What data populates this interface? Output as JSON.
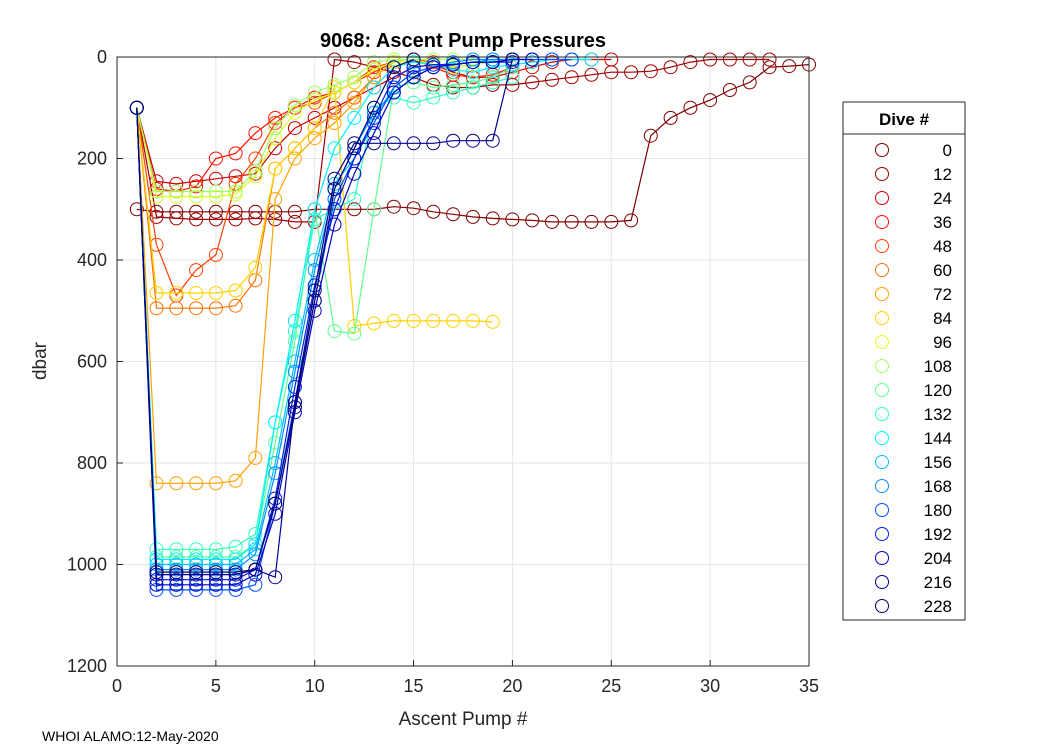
{
  "chart_data": {
    "type": "line",
    "title": "9068: Ascent Pump Pressures",
    "xlabel": "Ascent Pump #",
    "ylabel": "dbar",
    "xlim": [
      0,
      35
    ],
    "ylim": [
      0,
      1200
    ],
    "y_reversed": true,
    "grid": true,
    "xticks": [
      0,
      5,
      10,
      15,
      20,
      25,
      30,
      35
    ],
    "yticks": [
      0,
      200,
      400,
      600,
      800,
      1000,
      1200
    ],
    "marker": "open-circle",
    "legend": {
      "title": "Dive #",
      "placement": "outside-right",
      "entries": [
        {
          "label": "0",
          "color": "#800000"
        },
        {
          "label": "12",
          "color": "#A00000"
        },
        {
          "label": "24",
          "color": "#D00000"
        },
        {
          "label": "36",
          "color": "#FF1000"
        },
        {
          "label": "48",
          "color": "#FF4000"
        },
        {
          "label": "60",
          "color": "#FF7000"
        },
        {
          "label": "72",
          "color": "#FFA000"
        },
        {
          "label": "84",
          "color": "#FFD000"
        },
        {
          "label": "96",
          "color": "#DFFF20"
        },
        {
          "label": "108",
          "color": "#A0FF60"
        },
        {
          "label": "120",
          "color": "#60FF90"
        },
        {
          "label": "132",
          "color": "#30FFC0"
        },
        {
          "label": "144",
          "color": "#00F0FF"
        },
        {
          "label": "156",
          "color": "#00C0FF"
        },
        {
          "label": "168",
          "color": "#0090FF"
        },
        {
          "label": "180",
          "color": "#0050FF"
        },
        {
          "label": "192",
          "color": "#0020E0"
        },
        {
          "label": "204",
          "color": "#0000C0"
        },
        {
          "label": "216",
          "color": "#000090"
        },
        {
          "label": "228",
          "color": "#000070"
        }
      ]
    },
    "series": [
      {
        "name": "0",
        "color": "#800000",
        "x": [
          1,
          2,
          3,
          4,
          5,
          6,
          7,
          8,
          9,
          10,
          11,
          12,
          13,
          14,
          15,
          16,
          17,
          18,
          19,
          20,
          21,
          22,
          23,
          24,
          25,
          26,
          27,
          28,
          29,
          30,
          31,
          32,
          33,
          34,
          35
        ],
        "y": [
          300,
          305,
          305,
          305,
          305,
          305,
          305,
          305,
          305,
          300,
          300,
          300,
          300,
          295,
          298,
          305,
          310,
          315,
          318,
          320,
          322,
          325,
          325,
          325,
          325,
          322,
          155,
          120,
          100,
          85,
          65,
          50,
          20,
          18,
          15
        ]
      },
      {
        "name": "12",
        "color": "#A00000",
        "x": [
          1,
          2,
          3,
          4,
          5,
          6,
          7,
          8,
          9,
          10,
          11,
          12,
          13,
          14,
          15,
          16,
          17,
          18,
          19,
          20,
          21,
          22,
          23,
          24,
          25,
          26,
          27,
          28,
          29,
          30,
          31,
          32,
          33
        ],
        "y": [
          100,
          315,
          318,
          320,
          320,
          320,
          318,
          320,
          325,
          325,
          5,
          10,
          20,
          30,
          40,
          55,
          60,
          60,
          55,
          55,
          50,
          45,
          40,
          35,
          30,
          30,
          28,
          20,
          10,
          5,
          5,
          5,
          5
        ]
      },
      {
        "name": "24",
        "color": "#D00000",
        "x": [
          1,
          2,
          3,
          4,
          5,
          6,
          7,
          8,
          9,
          10,
          11,
          12,
          13,
          14,
          15,
          16,
          17,
          18,
          19,
          20,
          21,
          22,
          23,
          24,
          25
        ],
        "y": [
          100,
          245,
          250,
          245,
          240,
          235,
          230,
          180,
          140,
          120,
          100,
          80,
          60,
          40,
          20,
          15,
          30,
          40,
          40,
          30,
          20,
          10,
          5,
          5,
          5
        ]
      },
      {
        "name": "36",
        "color": "#FF1000",
        "x": [
          1,
          2,
          3,
          4,
          5,
          6,
          7,
          8,
          9,
          10,
          11,
          12,
          13,
          14,
          15,
          16,
          17,
          18,
          19,
          20
        ],
        "y": [
          100,
          260,
          265,
          255,
          200,
          190,
          150,
          120,
          100,
          80,
          70,
          50,
          30,
          10,
          5,
          20,
          35,
          40,
          35,
          20
        ]
      },
      {
        "name": "48",
        "color": "#FF4000",
        "x": [
          1,
          2,
          3,
          4,
          5,
          6,
          7,
          8,
          9,
          10,
          11,
          12,
          13,
          14,
          15,
          16
        ],
        "y": [
          100,
          370,
          470,
          420,
          390,
          250,
          200,
          130,
          100,
          90,
          70,
          50,
          20,
          10,
          5,
          10
        ]
      },
      {
        "name": "60",
        "color": "#FF7000",
        "x": [
          1,
          2,
          3,
          4,
          5,
          6,
          7,
          8,
          9,
          10,
          11,
          12,
          13,
          14,
          15
        ],
        "y": [
          100,
          495,
          495,
          495,
          495,
          490,
          440,
          220,
          180,
          140,
          110,
          80,
          40,
          10,
          5
        ]
      },
      {
        "name": "72",
        "color": "#FFA000",
        "x": [
          1,
          2,
          3,
          4,
          5,
          6,
          7,
          8,
          9,
          10,
          11,
          12,
          13,
          14,
          15
        ],
        "y": [
          100,
          840,
          840,
          840,
          840,
          835,
          790,
          280,
          200,
          160,
          130,
          90,
          40,
          10,
          5
        ]
      },
      {
        "name": "84",
        "color": "#FFD000",
        "x": [
          1,
          2,
          3,
          4,
          5,
          6,
          7,
          8,
          9,
          10,
          11,
          12,
          13,
          14,
          15,
          16,
          17,
          18,
          19
        ],
        "y": [
          100,
          465,
          465,
          465,
          465,
          460,
          415,
          220,
          180,
          140,
          60,
          530,
          525,
          520,
          520,
          520,
          520,
          520,
          522
        ]
      },
      {
        "name": "96",
        "color": "#DFFF20",
        "x": [
          1,
          2,
          3,
          4,
          5,
          6,
          7,
          8,
          9,
          10,
          11,
          12,
          13,
          14,
          15,
          16,
          17,
          18,
          19,
          20
        ],
        "y": [
          100,
          275,
          275,
          275,
          275,
          270,
          235,
          160,
          110,
          85,
          70,
          50,
          25,
          10,
          5,
          15,
          20,
          15,
          10,
          5
        ]
      },
      {
        "name": "108",
        "color": "#A0FF60",
        "x": [
          1,
          2,
          3,
          4,
          5,
          6,
          7,
          8,
          9,
          10,
          11,
          12,
          13,
          14,
          15,
          16,
          17,
          18
        ],
        "y": [
          100,
          265,
          265,
          265,
          265,
          265,
          225,
          140,
          95,
          70,
          55,
          40,
          10,
          5,
          5,
          5,
          5,
          5
        ]
      },
      {
        "name": "120",
        "color": "#60FF90",
        "x": [
          1,
          2,
          3,
          4,
          5,
          6,
          7,
          8,
          9,
          10,
          11,
          12,
          13,
          14,
          15,
          16,
          17,
          18,
          19,
          20
        ],
        "y": [
          100,
          985,
          985,
          985,
          985,
          985,
          960,
          760,
          560,
          300,
          540,
          545,
          300,
          60,
          50,
          60,
          55,
          50,
          40,
          20
        ]
      },
      {
        "name": "132",
        "color": "#30FFC0",
        "x": [
          1,
          2,
          3,
          4,
          5,
          6,
          7,
          8,
          9,
          10,
          11,
          12,
          13,
          14,
          15,
          16,
          17,
          18,
          19,
          20
        ],
        "y": [
          100,
          970,
          970,
          970,
          970,
          965,
          940,
          720,
          540,
          320,
          300,
          280,
          100,
          80,
          90,
          80,
          70,
          60,
          50,
          40
        ]
      },
      {
        "name": "144",
        "color": "#00F0FF",
        "x": [
          1,
          2,
          3,
          4,
          5,
          6,
          7,
          8,
          9,
          10,
          11,
          12,
          13,
          14,
          15,
          16,
          17,
          18,
          19,
          20,
          21,
          22,
          23,
          24
        ],
        "y": [
          100,
          990,
          990,
          990,
          990,
          990,
          960,
          720,
          520,
          300,
          180,
          120,
          60,
          20,
          10,
          15,
          25,
          30,
          20,
          15,
          10,
          5,
          5,
          5
        ]
      },
      {
        "name": "156",
        "color": "#00C0FF",
        "x": [
          1,
          2,
          3,
          4,
          5,
          6,
          7,
          8,
          9,
          10,
          11,
          12,
          13,
          14,
          15,
          16,
          17,
          18,
          19,
          20
        ],
        "y": [
          100,
          1000,
          1000,
          1000,
          1000,
          1000,
          970,
          800,
          600,
          400,
          250,
          200,
          120,
          60,
          30,
          20,
          15,
          10,
          5,
          5
        ]
      },
      {
        "name": "168",
        "color": "#0090FF",
        "x": [
          1,
          2,
          3,
          4,
          5,
          6,
          7,
          8,
          9,
          10,
          11,
          12,
          13,
          14,
          15,
          16,
          17,
          18,
          19,
          20
        ],
        "y": [
          100,
          1010,
          1010,
          1010,
          1010,
          1010,
          980,
          820,
          620,
          420,
          260,
          180,
          110,
          70,
          40,
          20,
          10,
          5,
          5,
          5
        ]
      },
      {
        "name": "180",
        "color": "#0050FF",
        "x": [
          1,
          2,
          3,
          4,
          5,
          6,
          7,
          8,
          9,
          10,
          11,
          12,
          13,
          14,
          15,
          16,
          17,
          18,
          19,
          20,
          21,
          22,
          23
        ],
        "y": [
          100,
          1050,
          1050,
          1050,
          1050,
          1050,
          1040,
          880,
          680,
          480,
          280,
          200,
          130,
          60,
          30,
          20,
          15,
          10,
          10,
          5,
          5,
          5,
          5
        ]
      },
      {
        "name": "192",
        "color": "#0020E0",
        "x": [
          1,
          2,
          3,
          4,
          5,
          6,
          7,
          8,
          9,
          10,
          11,
          12,
          13,
          14,
          15,
          16,
          17,
          18,
          19,
          20
        ],
        "y": [
          100,
          1030,
          1030,
          1030,
          1030,
          1030,
          1010,
          870,
          650,
          450,
          300,
          200,
          120,
          40,
          20,
          15,
          15,
          10,
          10,
          10
        ]
      },
      {
        "name": "204",
        "color": "#0000C0",
        "x": [
          1,
          2,
          3,
          4,
          5,
          6,
          7,
          8,
          9,
          10,
          11,
          12,
          13,
          14,
          15,
          16,
          17,
          18,
          19,
          20,
          21
        ],
        "y": [
          100,
          1040,
          1040,
          1040,
          1040,
          1040,
          1020,
          900,
          700,
          500,
          330,
          230,
          150,
          70,
          40,
          20,
          15,
          10,
          10,
          5,
          5
        ]
      },
      {
        "name": "216",
        "color": "#000090",
        "x": [
          1,
          2,
          3,
          4,
          5,
          6,
          7,
          8,
          9,
          10,
          11,
          12,
          13,
          14,
          15,
          16,
          17,
          18,
          19,
          20
        ],
        "y": [
          100,
          1020,
          1020,
          1020,
          1020,
          1020,
          1010,
          1025,
          680,
          460,
          240,
          170,
          170,
          170,
          170,
          170,
          165,
          165,
          165,
          5
        ]
      },
      {
        "name": "228",
        "color": "#000070",
        "x": [
          1,
          2,
          3,
          4,
          5,
          6,
          7,
          8,
          9,
          10,
          11,
          12,
          13,
          14,
          15
        ],
        "y": [
          100,
          1015,
          1015,
          1015,
          1015,
          1015,
          1010,
          880,
          690,
          480,
          260,
          180,
          100,
          20,
          5
        ]
      }
    ]
  },
  "footer": {
    "text": "WHOI ALAMO:12-May-2020"
  }
}
